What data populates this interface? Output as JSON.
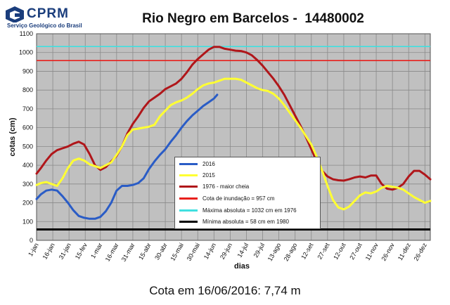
{
  "header": {
    "logo_name": "CPRM",
    "logo_subtitle": "Serviço Geológico do Brasil",
    "title": "Rio Negro em Barcelos -  14480002"
  },
  "caption": "Cota em 16/06/2016: 7,74 m",
  "colors": {
    "plot_background": "#c0c0c0",
    "s2016": "#2a5cc6",
    "s2015": "#ffff33",
    "s1976": "#b0161a",
    "flood": "#e8201c",
    "abs_max": "#40e0e0",
    "abs_min": "#000000"
  },
  "chart_data": {
    "type": "line",
    "xlabel": "dias",
    "ylabel": "cotas (cm)",
    "ylim": [
      0,
      1100
    ],
    "yticks": [
      0,
      100,
      200,
      300,
      400,
      500,
      600,
      700,
      800,
      900,
      1000,
      1100
    ],
    "xlim": [
      1,
      365
    ],
    "x_tick_labels": [
      "1-jan",
      "16-jan",
      "31-jan",
      "15-fev",
      "1-mar",
      "16-mar",
      "31-mar",
      "15-abr",
      "30-abr",
      "15-mai",
      "30-mai",
      "14-jun",
      "29-jun",
      "14-jul",
      "29-jul",
      "13-ago",
      "28-ago",
      "12-set",
      "27-set",
      "12-out",
      "27-out",
      "11-nov",
      "26-nov",
      "11-dez",
      "26-dez"
    ],
    "x_tick_days": [
      1,
      16,
      31,
      46,
      60,
      75,
      90,
      105,
      120,
      135,
      150,
      165,
      180,
      195,
      210,
      225,
      240,
      255,
      270,
      285,
      300,
      315,
      330,
      345,
      360
    ],
    "grid": true,
    "legend_position": "center-bottom",
    "series": [
      {
        "name": "2016",
        "color_key": "s2016",
        "x": [
          1,
          5,
          10,
          15,
          20,
          25,
          30,
          35,
          40,
          45,
          50,
          55,
          60,
          65,
          70,
          75,
          80,
          85,
          90,
          95,
          100,
          105,
          110,
          115,
          120,
          125,
          130,
          135,
          140,
          145,
          150,
          155,
          160,
          165,
          168
        ],
        "y": [
          220,
          245,
          265,
          270,
          265,
          235,
          200,
          160,
          130,
          120,
          115,
          115,
          125,
          155,
          200,
          265,
          290,
          290,
          295,
          305,
          330,
          380,
          420,
          455,
          485,
          525,
          560,
          600,
          635,
          665,
          690,
          715,
          735,
          755,
          775
        ]
      },
      {
        "name": "2015",
        "color_key": "s2015",
        "x": [
          1,
          5,
          10,
          15,
          20,
          25,
          30,
          35,
          40,
          45,
          50,
          55,
          60,
          65,
          70,
          75,
          80,
          85,
          90,
          95,
          100,
          105,
          110,
          115,
          120,
          125,
          130,
          135,
          140,
          145,
          150,
          155,
          160,
          165,
          170,
          175,
          180,
          185,
          190,
          195,
          200,
          205,
          210,
          215,
          220,
          225,
          230,
          235,
          240,
          245,
          250,
          255,
          260,
          265,
          270,
          275,
          280,
          285,
          290,
          295,
          300,
          305,
          310,
          315,
          320,
          325,
          330,
          335,
          340,
          345,
          350,
          355,
          360,
          365
        ],
        "y": [
          295,
          305,
          310,
          300,
          290,
          330,
          385,
          425,
          435,
          425,
          405,
          395,
          385,
          400,
          415,
          455,
          500,
          560,
          590,
          595,
          600,
          605,
          615,
          660,
          690,
          720,
          735,
          745,
          760,
          780,
          805,
          825,
          835,
          840,
          850,
          860,
          860,
          860,
          855,
          840,
          825,
          810,
          800,
          795,
          780,
          755,
          720,
          680,
          640,
          600,
          555,
          510,
          445,
          370,
          290,
          215,
          175,
          165,
          180,
          210,
          240,
          255,
          250,
          260,
          280,
          290,
          285,
          280,
          270,
          250,
          230,
          215,
          200,
          210
        ]
      },
      {
        "name": "1976 - maior cheia",
        "color_key": "s1976",
        "x": [
          1,
          5,
          10,
          15,
          20,
          25,
          30,
          35,
          40,
          45,
          50,
          55,
          60,
          65,
          70,
          75,
          80,
          85,
          90,
          95,
          100,
          105,
          110,
          115,
          120,
          125,
          130,
          135,
          140,
          145,
          150,
          155,
          160,
          165,
          170,
          175,
          180,
          185,
          190,
          195,
          200,
          205,
          210,
          215,
          220,
          225,
          230,
          235,
          240,
          245,
          250,
          255,
          260,
          265,
          270,
          275,
          280,
          285,
          290,
          295,
          300,
          305,
          310,
          315,
          320,
          325,
          330,
          335,
          340,
          345,
          350,
          355,
          360,
          365
        ],
        "y": [
          355,
          385,
          425,
          460,
          480,
          490,
          500,
          515,
          525,
          510,
          460,
          400,
          375,
          390,
          420,
          450,
          500,
          570,
          620,
          660,
          705,
          740,
          760,
          780,
          805,
          820,
          835,
          860,
          895,
          935,
          965,
          990,
          1015,
          1030,
          1030,
          1020,
          1015,
          1010,
          1008,
          1000,
          985,
          960,
          930,
          895,
          860,
          820,
          775,
          720,
          665,
          610,
          550,
          485,
          420,
          370,
          340,
          325,
          320,
          318,
          325,
          335,
          340,
          335,
          345,
          345,
          300,
          275,
          270,
          280,
          300,
          340,
          370,
          370,
          350,
          325
        ]
      }
    ],
    "reference_lines": [
      {
        "name": "Cota de inundação =  957 cm",
        "value": 957,
        "color_key": "flood"
      },
      {
        "name": "Máxima absoluta = 1032 cm em 1976",
        "value": 1032,
        "color_key": "abs_max"
      },
      {
        "name": "Mínima absoluta = 58 cm em 1980",
        "value": 58,
        "color_key": "abs_min"
      }
    ]
  }
}
